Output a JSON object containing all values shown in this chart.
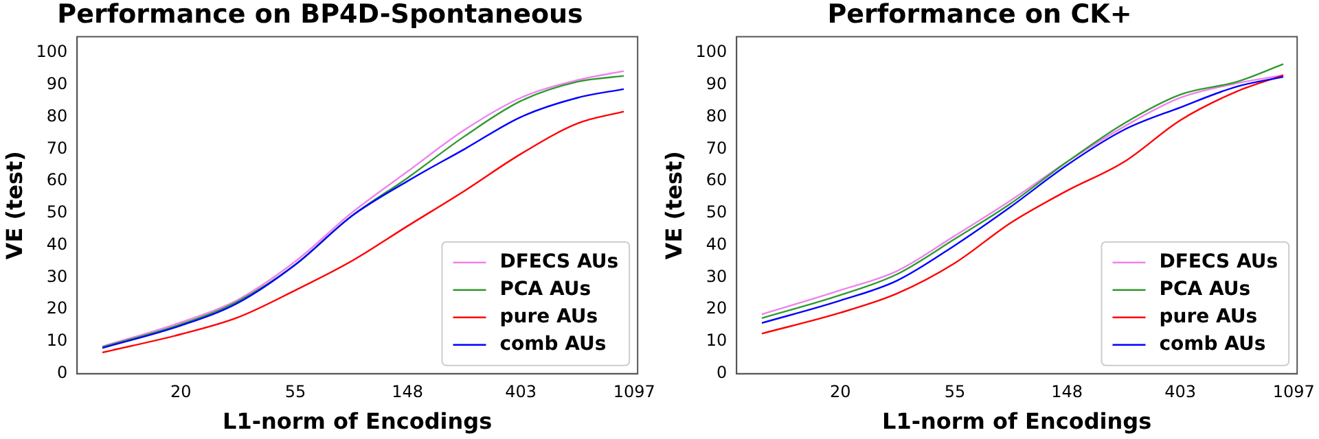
{
  "chart_data": [
    {
      "type": "line",
      "title": "Performance on BP4D-Spontaneous",
      "xlabel": "L1-norm of Encodings",
      "ylabel": "VE (test)",
      "log": "x",
      "xlim": [
        8,
        1130
      ],
      "ylim": [
        0,
        105
      ],
      "xticks": [
        20,
        55,
        148,
        403,
        1097
      ],
      "yticks": [
        0,
        10,
        20,
        30,
        40,
        50,
        60,
        70,
        80,
        90,
        100
      ],
      "legend": "bottom right",
      "marker": "none",
      "line_style": "solid",
      "x": [
        10,
        20,
        33,
        55,
        90,
        148,
        245,
        403,
        665,
        1000
      ],
      "series": [
        {
          "name": "DFECS AUs",
          "color": "#ee82ee",
          "values": [
            8.5,
            16,
            23,
            35,
            50,
            63,
            76,
            86,
            91.5,
            94.3
          ]
        },
        {
          "name": "PCA AUs",
          "color": "#2e9a2e",
          "values": [
            8.3,
            15.4,
            22.5,
            34,
            49,
            61,
            74,
            85,
            91,
            92.8
          ]
        },
        {
          "name": "pure AUs",
          "color": "#ff0000",
          "values": [
            6.6,
            12.3,
            17.5,
            26,
            35,
            46,
            57,
            68.5,
            78,
            81.7
          ]
        },
        {
          "name": "comb AUs",
          "color": "#0000ff",
          "values": [
            8,
            15,
            22,
            34,
            49,
            60,
            70,
            80,
            86,
            88.7
          ]
        }
      ]
    },
    {
      "type": "line",
      "title": "Performance on CK+",
      "xlabel": "L1-norm of Encodings",
      "ylabel": "VE (test)",
      "log": "x",
      "xlim": [
        8,
        1130
      ],
      "ylim": [
        0,
        105
      ],
      "xticks": [
        20,
        55,
        148,
        403,
        1097
      ],
      "yticks": [
        0,
        10,
        20,
        30,
        40,
        50,
        60,
        70,
        80,
        90,
        100
      ],
      "legend": "bottom right",
      "marker": "none",
      "line_style": "solid",
      "x": [
        10,
        20,
        33,
        55,
        90,
        148,
        245,
        403,
        665,
        1000
      ],
      "series": [
        {
          "name": "DFECS AUs",
          "color": "#ee82ee",
          "values": [
            18.5,
            26,
            32,
            43,
            54,
            66,
            77,
            86,
            90.5,
            93
          ]
        },
        {
          "name": "PCA AUs",
          "color": "#2e9a2e",
          "values": [
            17.3,
            24.5,
            31,
            42,
            53,
            66,
            78,
            87,
            91,
            96.5
          ]
        },
        {
          "name": "pure AUs",
          "color": "#ff0000",
          "values": [
            12.5,
            19,
            25,
            34.5,
            47,
            57,
            66,
            79,
            88,
            93
          ]
        },
        {
          "name": "comb AUs",
          "color": "#0000ff",
          "values": [
            15.8,
            22.8,
            29,
            40,
            52,
            65,
            76,
            83,
            89.5,
            92.5
          ]
        }
      ]
    }
  ]
}
